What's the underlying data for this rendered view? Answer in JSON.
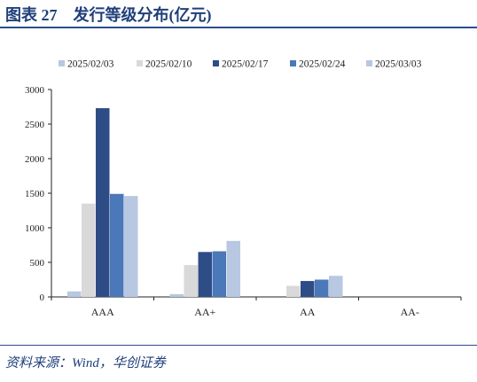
{
  "figure": {
    "title": "图表 27　发行等级分布(亿元)",
    "source": "资料来源：Wind，华创证券"
  },
  "chart_data": {
    "type": "bar",
    "title": "",
    "xlabel": "",
    "ylabel": "",
    "categories": [
      "AAA",
      "AA+",
      "AA",
      "AA-"
    ],
    "ylim": [
      0,
      3000
    ],
    "yticks": [
      0,
      500,
      1000,
      1500,
      2000,
      2500,
      3000
    ],
    "grid": false,
    "legend_position": "top",
    "series": [
      {
        "name": "2025/02/03",
        "color": "#b8c7e2",
        "values": [
          80,
          40,
          0,
          0
        ]
      },
      {
        "name": "2025/02/10",
        "color": "#d9d9d9",
        "values": [
          1350,
          460,
          160,
          0
        ]
      },
      {
        "name": "2025/02/17",
        "color": "#2e4c86",
        "values": [
          2730,
          650,
          230,
          0
        ]
      },
      {
        "name": "2025/02/24",
        "color": "#4a78b8",
        "values": [
          1490,
          660,
          250,
          0
        ]
      },
      {
        "name": "2025/03/03",
        "color": "#b8c7e2",
        "values": [
          1460,
          810,
          305,
          0
        ]
      }
    ]
  }
}
